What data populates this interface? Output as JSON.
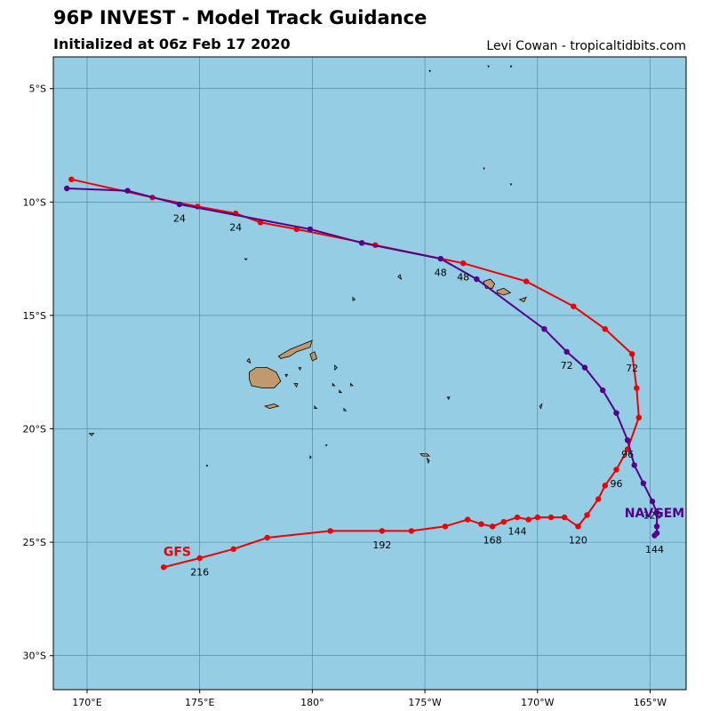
{
  "title": "96P INVEST - Model Track Guidance",
  "subtitle": "Initialized at 06z Feb 17 2020",
  "credit": "Levi Cowan - tropicaltidbits.com",
  "colors": {
    "ocean": "#94cde4",
    "land": "#c09a6c",
    "grid": "#3d6f80",
    "gfs": "#ee0000",
    "navgem": "#55008c"
  },
  "map_extent": {
    "lon": [
      168.5,
      196.6
    ],
    "lat": [
      -31.5,
      -3.6
    ]
  },
  "grid": {
    "lons": [
      170,
      175,
      180,
      185,
      190,
      195
    ],
    "lon_labels": [
      "170°E",
      "175°E",
      "180°",
      "175°W",
      "170°W",
      "165°W"
    ],
    "lats": [
      -5,
      -10,
      -15,
      -20,
      -25,
      -30
    ],
    "lat_labels": [
      "5°S",
      "10°S",
      "15°S",
      "20°S",
      "25°S",
      "30°S"
    ]
  },
  "tracks": [
    {
      "name": "GFS",
      "color": "#ee0000",
      "points": [
        [
          169.3,
          -9.0
        ],
        [
          172.9,
          -9.8
        ],
        [
          174.9,
          -10.2
        ],
        [
          176.6,
          -10.5
        ],
        [
          177.7,
          -10.9
        ],
        [
          179.3,
          -11.2
        ],
        [
          182.8,
          -11.9
        ],
        [
          186.7,
          -12.7
        ],
        [
          189.5,
          -13.5
        ],
        [
          191.6,
          -14.6
        ],
        [
          193.0,
          -15.6
        ],
        [
          194.2,
          -16.7
        ],
        [
          194.4,
          -18.2
        ],
        [
          194.5,
          -19.5
        ],
        [
          194.0,
          -20.9
        ],
        [
          193.5,
          -21.8
        ],
        [
          193.0,
          -22.5
        ],
        [
          192.7,
          -23.1
        ],
        [
          192.2,
          -23.8
        ],
        [
          191.8,
          -24.3
        ],
        [
          191.2,
          -23.9
        ],
        [
          190.6,
          -23.9
        ],
        [
          190.0,
          -23.9
        ],
        [
          189.6,
          -24.0
        ],
        [
          189.1,
          -23.9
        ],
        [
          188.5,
          -24.1
        ],
        [
          188.0,
          -24.3
        ],
        [
          187.5,
          -24.2
        ],
        [
          186.9,
          -24.0
        ],
        [
          185.9,
          -24.3
        ],
        [
          184.4,
          -24.5
        ],
        [
          183.1,
          -24.5
        ],
        [
          180.8,
          -24.5
        ],
        [
          178.0,
          -24.8
        ],
        [
          176.5,
          -25.3
        ],
        [
          175.0,
          -25.7
        ],
        [
          173.4,
          -26.1
        ]
      ],
      "labels": [
        {
          "text": "24",
          "lon": 176.6,
          "lat": -10.5,
          "dlon": 0.0,
          "dlat": -0.45
        },
        {
          "text": "48",
          "lon": 186.7,
          "lat": -12.7,
          "dlon": 0.0,
          "dlat": -0.45
        },
        {
          "text": "72",
          "lon": 194.2,
          "lat": -16.7,
          "dlon": 0.0,
          "dlat": -0.45
        },
        {
          "text": "96",
          "lon": 193.5,
          "lat": -21.8,
          "dlon": 0.0,
          "dlat": -0.45
        },
        {
          "text": "120",
          "lon": 191.8,
          "lat": -24.3,
          "dlon": 0.0,
          "dlat": -0.45
        },
        {
          "text": "144",
          "lon": 189.1,
          "lat": -23.9,
          "dlon": 0.0,
          "dlat": -0.45
        },
        {
          "text": "168",
          "lon": 188.0,
          "lat": -24.3,
          "dlon": 0.0,
          "dlat": -0.45
        },
        {
          "text": "192",
          "lon": 183.1,
          "lat": -24.5,
          "dlon": 0.0,
          "dlat": -0.45
        },
        {
          "text": "216",
          "lon": 175.0,
          "lat": -25.7,
          "dlon": 0.0,
          "dlat": -0.45
        }
      ],
      "name_label": {
        "lon": 174.0,
        "lat": -25.6
      }
    },
    {
      "name": "NAVGEM",
      "color": "#55008c",
      "points": [
        [
          169.1,
          -9.4
        ],
        [
          171.8,
          -9.5
        ],
        [
          174.1,
          -10.1
        ],
        [
          179.9,
          -11.2
        ],
        [
          182.2,
          -11.8
        ],
        [
          185.7,
          -12.5
        ],
        [
          187.3,
          -13.4
        ],
        [
          190.3,
          -15.6
        ],
        [
          191.3,
          -16.6
        ],
        [
          192.1,
          -17.3
        ],
        [
          192.9,
          -18.3
        ],
        [
          193.5,
          -19.3
        ],
        [
          194.0,
          -20.5
        ],
        [
          194.3,
          -21.6
        ],
        [
          194.7,
          -22.4
        ],
        [
          195.1,
          -23.2
        ],
        [
          195.3,
          -23.7
        ],
        [
          195.3,
          -24.3
        ],
        [
          195.3,
          -24.6
        ],
        [
          195.2,
          -24.7
        ]
      ],
      "labels": [
        {
          "text": "24",
          "lon": 174.1,
          "lat": -10.1,
          "dlon": 0.0,
          "dlat": -0.45
        },
        {
          "text": "48",
          "lon": 185.7,
          "lat": -12.5,
          "dlon": 0.0,
          "dlat": -0.45
        },
        {
          "text": "72",
          "lon": 191.3,
          "lat": -16.6,
          "dlon": 0.0,
          "dlat": -0.45
        },
        {
          "text": "96",
          "lon": 194.0,
          "lat": -20.5,
          "dlon": 0.0,
          "dlat": -0.45
        },
        {
          "text": "120",
          "lon": 195.1,
          "lat": -23.2,
          "dlon": 0.0,
          "dlat": -0.45
        },
        {
          "text": "144",
          "lon": 195.2,
          "lat": -24.7,
          "dlon": 0.0,
          "dlat": -0.45
        }
      ],
      "name_label": {
        "lon": 195.2,
        "lat": -23.9
      }
    }
  ],
  "islands": [
    {
      "name": "viti-levu",
      "poly": [
        [
          177.2,
          -17.5
        ],
        [
          177.5,
          -17.3
        ],
        [
          178.0,
          -17.3
        ],
        [
          178.4,
          -17.5
        ],
        [
          178.6,
          -17.9
        ],
        [
          178.3,
          -18.2
        ],
        [
          177.8,
          -18.2
        ],
        [
          177.3,
          -18.1
        ],
        [
          177.2,
          -17.8
        ]
      ]
    },
    {
      "name": "vanua-levu",
      "poly": [
        [
          178.5,
          -16.8
        ],
        [
          179.0,
          -16.5
        ],
        [
          179.5,
          -16.3
        ],
        [
          180.0,
          -16.1
        ],
        [
          179.9,
          -16.4
        ],
        [
          179.3,
          -16.6
        ],
        [
          179.0,
          -16.8
        ],
        [
          178.6,
          -16.9
        ]
      ]
    },
    {
      "name": "taveuni",
      "poly": [
        [
          179.9,
          -16.7
        ],
        [
          180.1,
          -16.6
        ],
        [
          180.2,
          -16.9
        ],
        [
          180.0,
          -17.0
        ]
      ]
    },
    {
      "name": "kadavu",
      "poly": [
        [
          177.9,
          -19.0
        ],
        [
          178.3,
          -18.9
        ],
        [
          178.5,
          -19.0
        ],
        [
          178.1,
          -19.1
        ]
      ]
    },
    {
      "name": "savaii",
      "poly": [
        [
          187.6,
          -13.5
        ],
        [
          187.9,
          -13.4
        ],
        [
          188.1,
          -13.6
        ],
        [
          188.0,
          -13.8
        ],
        [
          187.7,
          -13.8
        ]
      ]
    },
    {
      "name": "upolu",
      "poly": [
        [
          188.2,
          -13.9
        ],
        [
          188.5,
          -13.8
        ],
        [
          188.8,
          -14.0
        ],
        [
          188.5,
          -14.1
        ],
        [
          188.2,
          -14.0
        ]
      ]
    },
    {
      "name": "tutuila",
      "poly": [
        [
          189.2,
          -14.3
        ],
        [
          189.5,
          -14.2
        ],
        [
          189.4,
          -14.4
        ]
      ]
    },
    {
      "name": "wallis",
      "poly": [
        [
          183.8,
          -13.3
        ],
        [
          183.9,
          -13.2
        ],
        [
          183.95,
          -13.4
        ]
      ]
    },
    {
      "name": "futuna",
      "poly": [
        [
          181.8,
          -14.2
        ],
        [
          181.9,
          -14.3
        ],
        [
          181.8,
          -14.35
        ]
      ]
    },
    {
      "name": "niue",
      "poly": [
        [
          190.1,
          -19.0
        ],
        [
          190.2,
          -18.9
        ],
        [
          190.15,
          -19.1
        ]
      ]
    },
    {
      "name": "tongatapu",
      "poly": [
        [
          184.8,
          -21.1
        ],
        [
          185.1,
          -21.1
        ],
        [
          185.2,
          -21.2
        ],
        [
          184.9,
          -21.2
        ]
      ]
    },
    {
      "name": "eua",
      "poly": [
        [
          185.1,
          -21.3
        ],
        [
          185.2,
          -21.4
        ],
        [
          185.15,
          -21.5
        ]
      ]
    },
    {
      "name": "vavau",
      "poly": [
        [
          186.0,
          -18.6
        ],
        [
          186.1,
          -18.6
        ],
        [
          186.05,
          -18.7
        ]
      ]
    },
    {
      "name": "rotuma",
      "poly": [
        [
          177.0,
          -12.5
        ],
        [
          177.1,
          -12.5
        ],
        [
          177.05,
          -12.55
        ]
      ]
    },
    {
      "name": "lau-1",
      "poly": [
        [
          181.0,
          -17.2
        ],
        [
          181.1,
          -17.3
        ],
        [
          181.0,
          -17.4
        ]
      ]
    },
    {
      "name": "lau-2",
      "poly": [
        [
          180.9,
          -18.0
        ],
        [
          181.0,
          -18.1
        ],
        [
          180.9,
          -18.1
        ]
      ]
    },
    {
      "name": "lau-3",
      "poly": [
        [
          181.2,
          -18.3
        ],
        [
          181.3,
          -18.4
        ],
        [
          181.2,
          -18.4
        ]
      ]
    },
    {
      "name": "lau-4",
      "poly": [
        [
          181.7,
          -18.0
        ],
        [
          181.8,
          -18.1
        ],
        [
          181.7,
          -18.1
        ]
      ]
    },
    {
      "name": "lau-5",
      "poly": [
        [
          180.1,
          -19.0
        ],
        [
          180.2,
          -19.1
        ],
        [
          180.1,
          -19.1
        ]
      ]
    },
    {
      "name": "lau-6",
      "poly": [
        [
          181.4,
          -19.1
        ],
        [
          181.5,
          -19.2
        ],
        [
          181.4,
          -19.2
        ]
      ]
    },
    {
      "name": "yasawa",
      "poly": [
        [
          177.1,
          -17.0
        ],
        [
          177.2,
          -16.9
        ],
        [
          177.25,
          -17.1
        ]
      ]
    },
    {
      "name": "koro",
      "poly": [
        [
          179.4,
          -17.3
        ],
        [
          179.5,
          -17.3
        ],
        [
          179.45,
          -17.4
        ]
      ]
    },
    {
      "name": "ovalau",
      "poly": [
        [
          178.8,
          -17.6
        ],
        [
          178.9,
          -17.6
        ],
        [
          178.85,
          -17.7
        ]
      ]
    },
    {
      "name": "lakeba",
      "poly": [
        [
          179.2,
          -18.0
        ],
        [
          179.35,
          -18.0
        ],
        [
          179.3,
          -18.15
        ]
      ]
    },
    {
      "name": "conway",
      "poly": [
        [
          170.1,
          -20.2
        ],
        [
          170.3,
          -20.2
        ],
        [
          170.2,
          -20.3
        ]
      ]
    },
    {
      "name": "minerva",
      "poly": [
        [
          179.9,
          -21.2
        ],
        [
          179.95,
          -21.25
        ],
        [
          179.9,
          -21.3
        ]
      ]
    },
    {
      "name": "islet-a",
      "poly": [
        [
          180.6,
          -20.7
        ],
        [
          180.65,
          -20.7
        ],
        [
          180.62,
          -20.75
        ]
      ]
    },
    {
      "name": "islet-b",
      "poly": [
        [
          175.3,
          -21.6
        ],
        [
          175.35,
          -21.6
        ],
        [
          175.32,
          -21.65
        ]
      ]
    },
    {
      "name": "tuvalu-1",
      "poly": [
        [
          185.2,
          -4.2
        ],
        [
          185.25,
          -4.2
        ],
        [
          185.22,
          -4.25
        ]
      ]
    },
    {
      "name": "tuvalu-2",
      "poly": [
        [
          187.8,
          -4.0
        ],
        [
          187.85,
          -4.0
        ],
        [
          187.82,
          -4.05
        ]
      ]
    },
    {
      "name": "tuvalu-3",
      "poly": [
        [
          188.8,
          -4.0
        ],
        [
          188.85,
          -4.0
        ],
        [
          188.82,
          -4.05
        ]
      ]
    },
    {
      "name": "tokelau-1",
      "poly": [
        [
          187.6,
          -8.5
        ],
        [
          187.65,
          -8.5
        ],
        [
          187.62,
          -8.55
        ]
      ]
    },
    {
      "name": "tokelau-2",
      "poly": [
        [
          188.8,
          -9.2
        ],
        [
          188.85,
          -9.2
        ],
        [
          188.82,
          -9.25
        ]
      ]
    }
  ]
}
